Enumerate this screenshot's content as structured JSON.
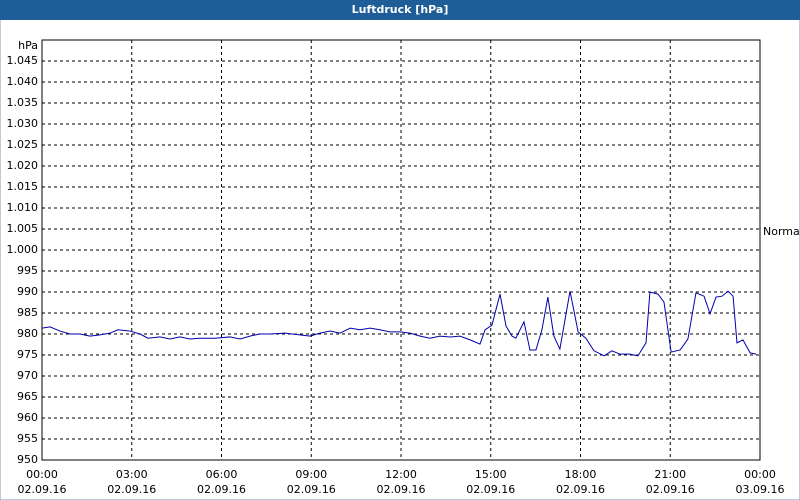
{
  "chart_data": {
    "type": "line",
    "title": "Luftdruck [hPa]",
    "y_label": "hPa",
    "annotation": "Normal",
    "color": "#0000a8",
    "grid": true,
    "x": [
      0,
      0.27,
      0.6,
      0.94,
      1.27,
      1.6,
      1.94,
      2.27,
      2.54,
      2.94,
      3.28,
      3.54,
      3.94,
      4.28,
      4.61,
      4.95,
      5.28,
      5.78,
      6.28,
      6.62,
      6.95,
      7.29,
      7.62,
      8.12,
      8.62,
      8.96,
      9.29,
      9.63,
      9.96,
      10.3,
      10.63,
      10.96,
      11.3,
      11.63,
      11.97,
      12.3,
      12.64,
      12.97,
      13.3,
      13.64,
      13.97,
      14.31,
      14.64,
      14.81,
      15.04,
      15.31,
      15.51,
      15.71,
      15.84,
      16.11,
      16.31,
      16.51,
      16.71,
      16.91,
      17.11,
      17.31,
      17.65,
      17.92,
      18.18,
      18.45,
      18.79,
      19.05,
      19.32,
      19.65,
      19.92,
      20.19,
      20.32,
      20.59,
      20.79,
      21.03,
      21.33,
      21.59,
      21.86,
      22.13,
      22.33,
      22.53,
      22.73,
      22.93,
      23.1,
      23.23,
      23.43,
      23.67,
      23.87
    ],
    "values": [
      981.4,
      981.7,
      980.7,
      980,
      980,
      979.5,
      979.8,
      980.2,
      981,
      980.7,
      980,
      979,
      979.3,
      978.8,
      979.3,
      978.8,
      979,
      979,
      979.3,
      978.8,
      979.5,
      980,
      980,
      980.2,
      979.8,
      979.5,
      980.2,
      980.7,
      980.2,
      981.4,
      981,
      981.4,
      981,
      980.5,
      980.5,
      980.2,
      979.5,
      979,
      979.5,
      979.3,
      979.5,
      978.6,
      977.6,
      981,
      982.1,
      989.5,
      981.9,
      979.5,
      979,
      982.9,
      976.2,
      976.2,
      981,
      988.8,
      979.5,
      976.4,
      990.2,
      980.5,
      979,
      976,
      974.8,
      976,
      975.2,
      975.2,
      974.8,
      977.9,
      990,
      989.5,
      987.6,
      975.7,
      976.2,
      978.8,
      989.8,
      989,
      984.8,
      988.8,
      989,
      990.2,
      989,
      977.9,
      978.6,
      975.5,
      975.2
    ],
    "xlim": [
      0,
      24
    ],
    "xticks": [
      {
        "value": 0,
        "label": "00:00"
      },
      {
        "value": 3,
        "label": "03:00"
      },
      {
        "value": 6,
        "label": "06:00"
      },
      {
        "value": 9,
        "label": "09:00"
      },
      {
        "value": 12,
        "label": "12:00"
      },
      {
        "value": 15,
        "label": "15:00"
      },
      {
        "value": 18,
        "label": "18:00"
      },
      {
        "value": 21,
        "label": "21:00"
      },
      {
        "value": 24,
        "label": "00:00"
      }
    ],
    "xtick_dates": [
      "02.09.16",
      "02.09.16",
      "02.09.16",
      "02.09.16",
      "02.09.16",
      "02.09.16",
      "02.09.16",
      "02.09.16",
      "03.09.16"
    ],
    "ylim": [
      950,
      1050
    ],
    "yticks": [
      950,
      955,
      960,
      965,
      970,
      975,
      980,
      985,
      990,
      995,
      {
        "value": 1000,
        "label": "1.000"
      },
      {
        "value": 1005,
        "label": "1.005"
      },
      {
        "value": 1010,
        "label": "1.010"
      },
      {
        "value": 1015,
        "label": "1.015"
      },
      {
        "value": 1020,
        "label": "1.020"
      },
      {
        "value": 1025,
        "label": "1.025"
      },
      {
        "value": 1030,
        "label": "1.030"
      },
      {
        "value": 1035,
        "label": "1.035"
      },
      {
        "value": 1040,
        "label": "1.040"
      },
      {
        "value": 1045,
        "label": "1.045"
      }
    ]
  }
}
